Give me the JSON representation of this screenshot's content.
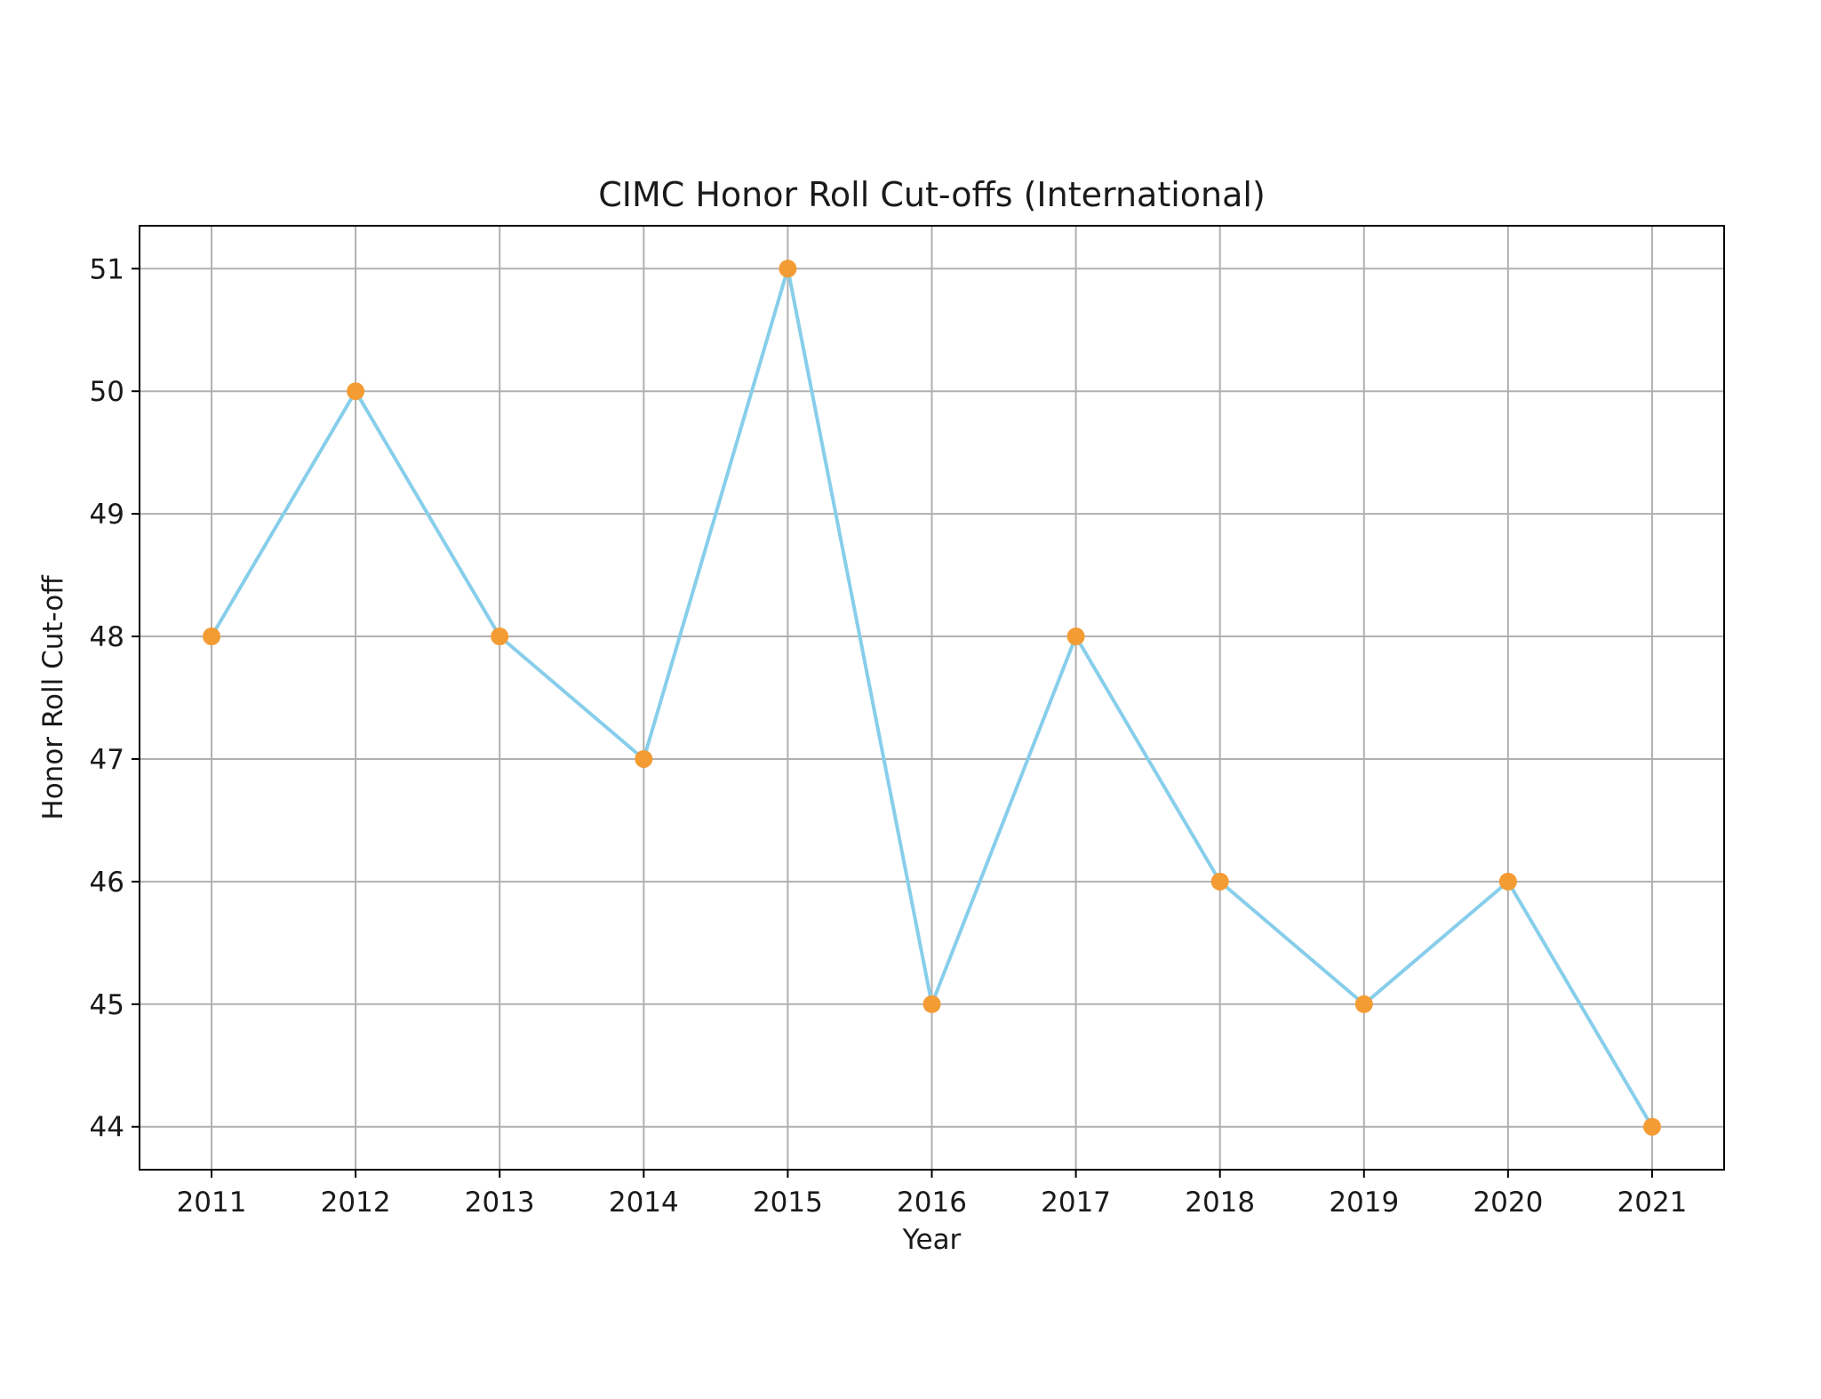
{
  "chart_data": {
    "type": "line",
    "title": "CIMC Honor Roll Cut-offs (International)",
    "xlabel": "Year",
    "ylabel": "Honor Roll Cut-off",
    "x": [
      2011,
      2012,
      2013,
      2014,
      2015,
      2016,
      2017,
      2018,
      2019,
      2020,
      2021
    ],
    "series": [
      {
        "values": [
          48,
          50,
          48,
          47,
          51,
          45,
          48,
          46,
          45,
          46,
          44
        ]
      }
    ],
    "xlim": [
      2010.5,
      2021.5
    ],
    "ylim": [
      43.65,
      51.35
    ],
    "yticks": [
      44,
      45,
      46,
      47,
      48,
      49,
      50,
      51
    ],
    "grid": true,
    "legend": "none",
    "colors": {
      "line": "#87ceeb",
      "marker": "#f39c34",
      "grid": "#b0b0b0",
      "frame": "#000000",
      "text": "#1a1a1a"
    }
  }
}
